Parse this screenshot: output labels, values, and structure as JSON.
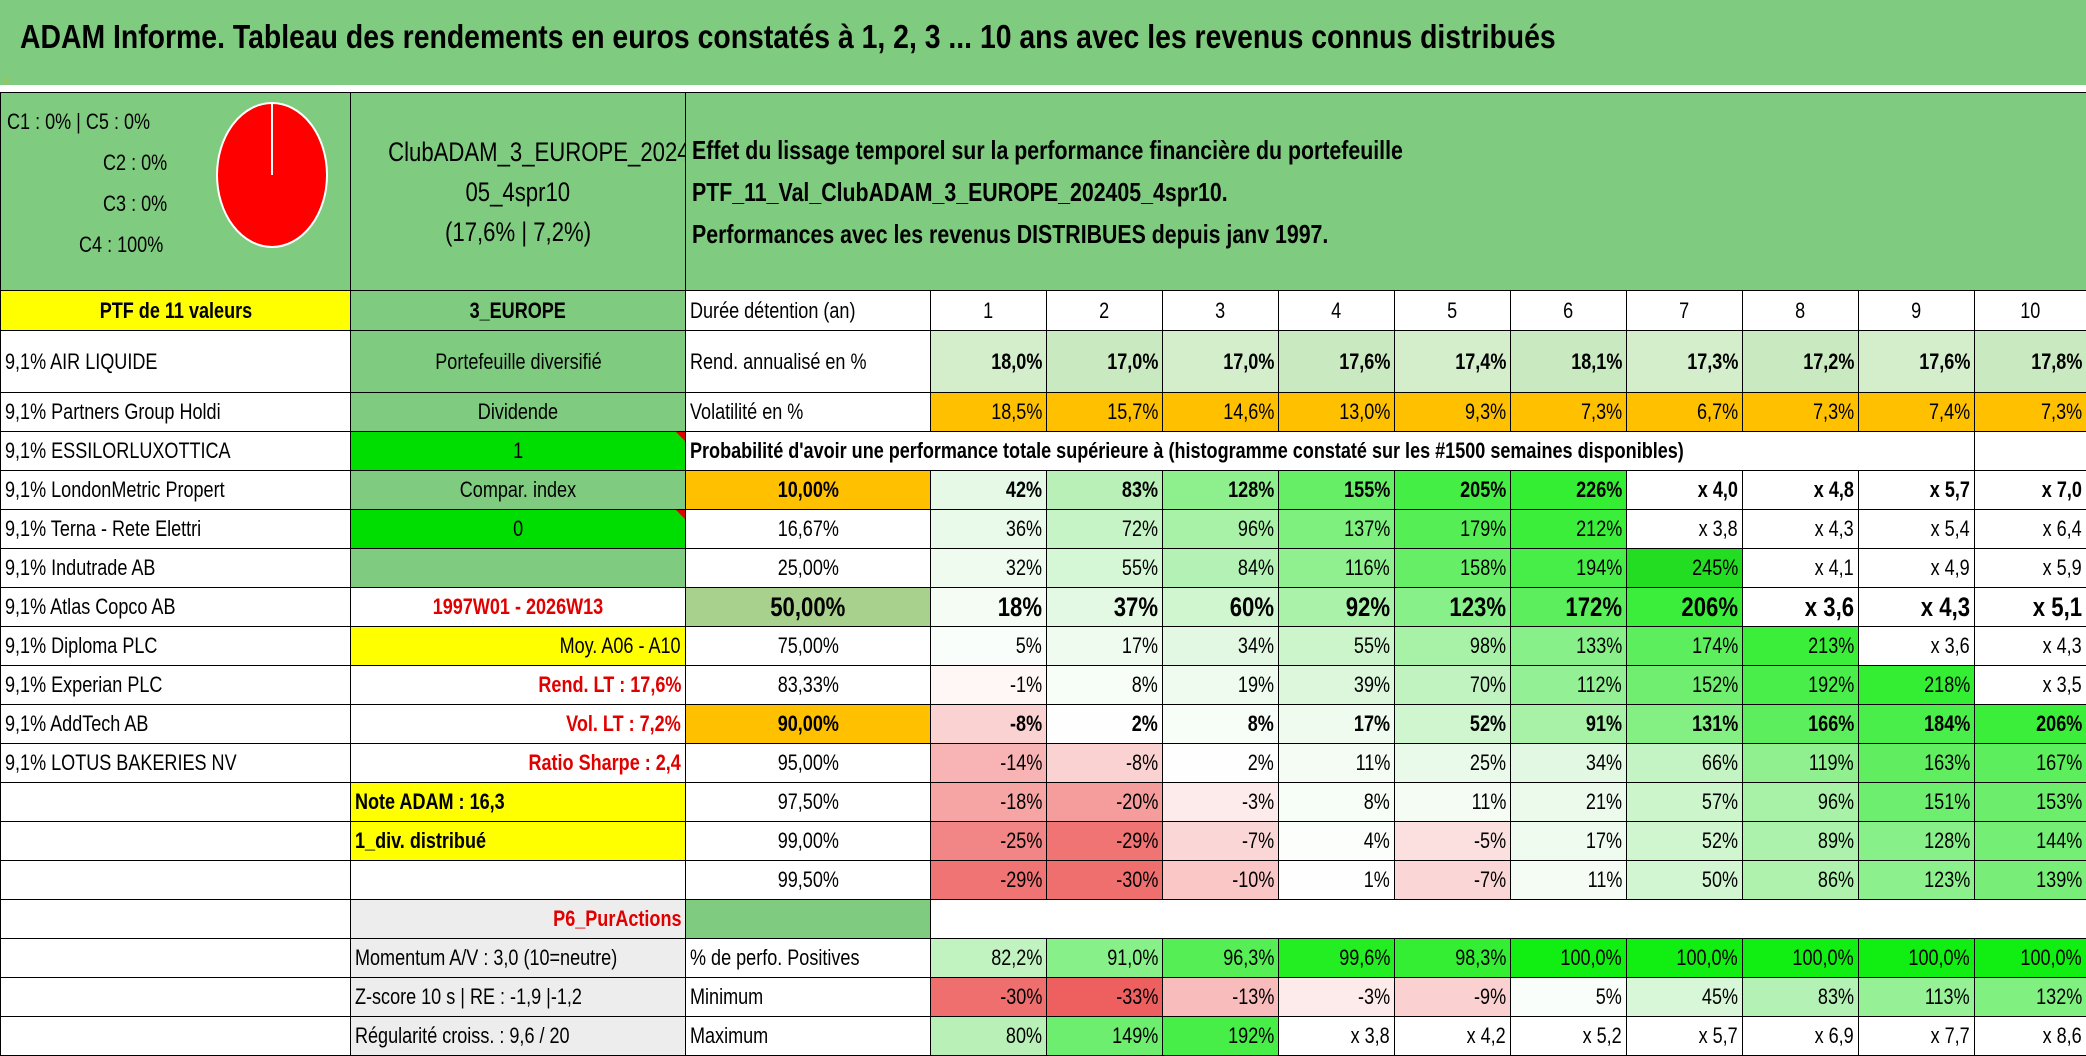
{
  "banner": {
    "title": "ADAM Informe. Tableau des rendements en euros constatés à 1, 2, 3 ... 10 ans avec les revenus connus distribués"
  },
  "legend": {
    "lines": [
      "C1 : 0% | C5 : 0%",
      "C2 : 0%",
      "C3 : 0%",
      "C4 : 100%"
    ],
    "pie_color": "#ff0000"
  },
  "club": {
    "name_line1": "ClubADAM_3_EUROPE_2024",
    "name_line2": "05_4spr10",
    "name_line3": "(17,6% | 7,2%)"
  },
  "description": {
    "line1": "Effet du lissage temporel sur la performance financière du portefeuille PTF_11_Val_ClubADAM_3_EUROPE_202405_4spr10.",
    "line2": "Performances avec les revenus DISTRIBUES depuis janv 1997."
  },
  "ptf_label": "PTF de 11 valeurs",
  "region": "3_EUROPE",
  "duration_label": "Durée détention (an)",
  "years": [
    "1",
    "2",
    "3",
    "4",
    "5",
    "6",
    "7",
    "8",
    "9",
    "10"
  ],
  "holdings": [
    "9,1% AIR LIQUIDE",
    "9,1% Partners Group Holdi",
    "9,1% ESSILORLUXOTTICA",
    "9,1% LondonMetric Propert",
    "9,1% Terna - Rete Elettri",
    "9,1% Indutrade AB",
    "9,1% Atlas Copco AB",
    "9,1% Diploma PLC",
    "9,1% Experian PLC",
    "9,1% AddTech AB",
    "9,1% LOTUS BAKERIES NV"
  ],
  "info": {
    "diversified": "Portefeuille diversifié",
    "dividend": "Dividende",
    "dividend_value": "1",
    "compar_index": "Compar. index",
    "compar_value": "0",
    "period": "1997W01 - 2026W13",
    "avg": "Moy. A06 - A10",
    "rend_lt": "Rend. LT : 17,6%",
    "vol_lt": "Vol. LT : 7,2%",
    "sharpe": "Ratio Sharpe : 2,4",
    "note": "Note ADAM : 16,3",
    "div_distrib": "1_div. distribué",
    "purchase": "P6_PurActions",
    "momentum": "Momentum A/V : 3,0 (10=neutre)",
    "zscore": "Z-score 10 s | RE : -1,9 |-1,2",
    "regularity": "Régularité croiss. : 9,6 / 20"
  },
  "rend": {
    "label": "Rend. annualisé en %",
    "values": [
      "18,0%",
      "17,0%",
      "17,0%",
      "17,6%",
      "17,4%",
      "18,1%",
      "17,3%",
      "17,2%",
      "17,6%",
      "17,8%"
    ]
  },
  "vol": {
    "label": "Volatilité en %",
    "values": [
      "18,5%",
      "15,7%",
      "14,6%",
      "13,0%",
      "9,3%",
      "7,3%",
      "6,7%",
      "7,3%",
      "7,4%",
      "7,3%"
    ]
  },
  "prob_title": "Probabilité d'avoir une performance totale supérieure à (histogramme constaté sur les #1500 semaines disponibles)",
  "prob_rows": [
    {
      "p": "10,00%",
      "values": [
        "42%",
        "83%",
        "128%",
        "155%",
        "205%",
        "226%",
        "x 4,0",
        "x 4,8",
        "x 5,7",
        "x 7,0"
      ],
      "colors": [
        "#e6f9e6",
        "#b8f0b8",
        "#8df08d",
        "#66ee66",
        "#44ee44",
        "#33ee33",
        "#ffffff",
        "#ffffff",
        "#ffffff",
        "#ffffff"
      ]
    },
    {
      "p": "16,67%",
      "values": [
        "36%",
        "72%",
        "96%",
        "137%",
        "179%",
        "212%",
        "x 3,8",
        "x 4,3",
        "x 5,4",
        "x 6,4"
      ],
      "colors": [
        "#eafaea",
        "#c6f4c6",
        "#a8f2a8",
        "#7ef07e",
        "#55ee55",
        "#3aee3a",
        "#ffffff",
        "#ffffff",
        "#ffffff",
        "#ffffff"
      ]
    },
    {
      "p": "25,00%",
      "values": [
        "32%",
        "55%",
        "84%",
        "116%",
        "158%",
        "194%",
        "245%",
        "x 4,1",
        "x 4,9",
        "x 5,9"
      ],
      "colors": [
        "#eefbee",
        "#d6f7d6",
        "#b4f1b4",
        "#90f090",
        "#66ee66",
        "#48ee48",
        "#22dd22",
        "#ffffff",
        "#ffffff",
        "#ffffff"
      ]
    },
    {
      "p": "50,00%",
      "values": [
        "18%",
        "37%",
        "60%",
        "92%",
        "123%",
        "172%",
        "206%",
        "x 3,6",
        "x 4,3",
        "x 5,1"
      ],
      "colors": [
        "#f4fcf4",
        "#e4f9e4",
        "#d0f6d0",
        "#aaf2aa",
        "#88f088",
        "#5cee5c",
        "#3cee3c",
        "#ffffff",
        "#ffffff",
        "#ffffff"
      ]
    },
    {
      "p": "75,00%",
      "values": [
        "5%",
        "17%",
        "34%",
        "55%",
        "98%",
        "133%",
        "174%",
        "213%",
        "x 3,6",
        "x 4,3"
      ],
      "colors": [
        "#fafefa",
        "#f0fbf0",
        "#e2f8e2",
        "#ccf5cc",
        "#a8f2a8",
        "#88f088",
        "#5cee5c",
        "#3aee3a",
        "#ffffff",
        "#ffffff"
      ]
    },
    {
      "p": "83,33%",
      "values": [
        "-1%",
        "8%",
        "19%",
        "39%",
        "70%",
        "112%",
        "152%",
        "192%",
        "218%",
        "x 3,5"
      ],
      "colors": [
        "#fff6f6",
        "#f7fdf7",
        "#eefbee",
        "#dcf7dc",
        "#c0f3c0",
        "#94f094",
        "#70ee70",
        "#4aee4a",
        "#33ee33",
        "#ffffff"
      ]
    },
    {
      "p": "90,00%",
      "values": [
        "-8%",
        "2%",
        "8%",
        "17%",
        "52%",
        "91%",
        "131%",
        "166%",
        "184%",
        "206%"
      ],
      "colors": [
        "#fbd2d2",
        "#fdfefd",
        "#f7fdf7",
        "#f0fbf0",
        "#d0f6d0",
        "#a8f2a8",
        "#84f084",
        "#5cee5c",
        "#4aee4a",
        "#3aee3a"
      ]
    },
    {
      "p": "95,00%",
      "values": [
        "-14%",
        "-8%",
        "2%",
        "11%",
        "25%",
        "34%",
        "66%",
        "119%",
        "163%",
        "167%"
      ],
      "colors": [
        "#f8b4b4",
        "#fbd2d2",
        "#fdfefd",
        "#f4fcf4",
        "#eafaea",
        "#e2f8e2",
        "#c4f4c4",
        "#90f090",
        "#60ee60",
        "#5cee5c"
      ]
    },
    {
      "p": "97,50%",
      "values": [
        "-18%",
        "-20%",
        "-3%",
        "8%",
        "11%",
        "21%",
        "57%",
        "96%",
        "151%",
        "153%"
      ],
      "colors": [
        "#f6a4a4",
        "#f59c9c",
        "#fdeaea",
        "#f7fdf7",
        "#f4fcf4",
        "#ecfaec",
        "#ccf5cc",
        "#a8f2a8",
        "#6eee6e",
        "#6cee6c"
      ]
    },
    {
      "p": "99,00%",
      "values": [
        "-25%",
        "-29%",
        "-7%",
        "4%",
        "-5%",
        "17%",
        "52%",
        "89%",
        "128%",
        "144%"
      ],
      "colors": [
        "#f28686",
        "#f07474",
        "#fbd6d6",
        "#fbfefb",
        "#fce0e0",
        "#f0fbf0",
        "#d0f6d0",
        "#acf2ac",
        "#88f088",
        "#74ee74"
      ]
    },
    {
      "p": "99,50%",
      "values": [
        "-29%",
        "-30%",
        "-10%",
        "1%",
        "-7%",
        "11%",
        "50%",
        "86%",
        "123%",
        "139%"
      ],
      "colors": [
        "#f07474",
        "#ef6e6e",
        "#fac6c6",
        "#fdfefd",
        "#fbd6d6",
        "#f4fcf4",
        "#d2f6d2",
        "#aef2ae",
        "#8cf08c",
        "#78ee78"
      ]
    }
  ],
  "positive": {
    "label": "% de perfo. Positives",
    "values": [
      "82,2%",
      "91,0%",
      "96,3%",
      "99,6%",
      "98,3%",
      "100,0%",
      "100,0%",
      "100,0%",
      "100,0%",
      "100,0%"
    ],
    "colors": [
      "#c0f3c0",
      "#88f088",
      "#55ee55",
      "#22ee22",
      "#33ee33",
      "#11ee11",
      "#11ee11",
      "#11ee11",
      "#11ee11",
      "#11ee11"
    ]
  },
  "minimum": {
    "label": "Minimum",
    "values": [
      "-30%",
      "-33%",
      "-13%",
      "-3%",
      "-9%",
      "5%",
      "45%",
      "83%",
      "113%",
      "132%"
    ],
    "colors": [
      "#ef6e6e",
      "#ee6060",
      "#f8bcbc",
      "#fdeaea",
      "#fad0d0",
      "#fafefa",
      "#d8f7d8",
      "#b4f1b4",
      "#96f096",
      "#80f080"
    ]
  },
  "maximum": {
    "label": "Maximum",
    "values": [
      "80%",
      "149%",
      "192%",
      "x 3,8",
      "x 4,2",
      "x 5,2",
      "x 5,7",
      "x 6,9",
      "x 7,7",
      "x 8,6"
    ],
    "colors": [
      "#b8f0b8",
      "#6eee6e",
      "#48ee48",
      "#ffffff",
      "#ffffff",
      "#ffffff",
      "#ffffff",
      "#ffffff",
      "#ffffff",
      "#ffffff"
    ]
  },
  "colors": {
    "banner": "#7fcb7f",
    "yellow": "#ffff00",
    "orange": "#ffc000",
    "bright_green": "#00dd00",
    "red_text": "#e00000"
  }
}
